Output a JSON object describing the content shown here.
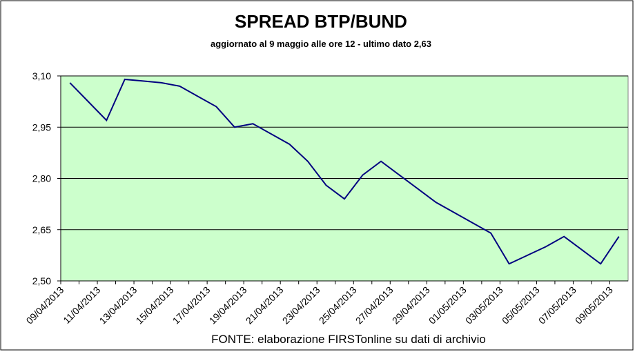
{
  "chart_data": {
    "type": "line",
    "title": "SPREAD  BTP/BUND",
    "subtitle": "aggiornato al 9 maggio alle ore 12 - ultimo dato 2,63",
    "note": "FONTE: elaborazione FIRSTonline su dati di archivio",
    "categories": [
      "09/04/2013",
      null,
      "11/04/2013",
      null,
      "13/04/2013",
      null,
      "15/04/2013",
      null,
      "17/04/2013",
      null,
      "19/04/2013",
      null,
      "21/04/2013",
      null,
      "23/04/2013",
      null,
      "25/04/2013",
      null,
      "27/04/2013",
      null,
      "29/04/2013",
      null,
      "01/05/2013",
      null,
      "03/05/2013",
      null,
      "05/05/2013",
      null,
      "07/05/2013",
      null,
      "09/05/2013"
    ],
    "series": [
      {
        "name": "Spread",
        "color": "#000080",
        "values": [
          3.08,
          3.025,
          2.97,
          3.09,
          3.085,
          3.08,
          3.07,
          3.04,
          3.01,
          2.95,
          2.96,
          2.93,
          2.9,
          2.85,
          2.78,
          2.74,
          2.81,
          2.85,
          2.81,
          2.77,
          2.73,
          2.7,
          2.67,
          2.64,
          2.55,
          2.575,
          2.6,
          2.63,
          2.59,
          2.55,
          2.63
        ]
      }
    ],
    "ylim": [
      2.5,
      3.1
    ],
    "yticks": [
      {
        "value": 2.5,
        "label": "2,50"
      },
      {
        "value": 2.65,
        "label": "2,65"
      },
      {
        "value": 2.8,
        "label": "2,80"
      },
      {
        "value": 2.95,
        "label": "2,95"
      },
      {
        "value": 3.1,
        "label": "3,10"
      }
    ],
    "grid": true,
    "plot_background": "#ccffcc"
  }
}
